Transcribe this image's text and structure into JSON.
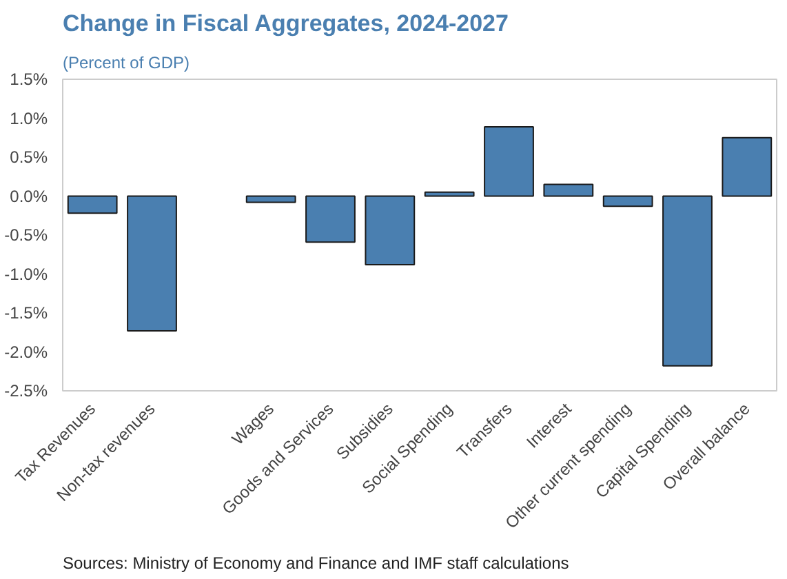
{
  "chart_data": {
    "type": "bar",
    "title": "Change in Fiscal Aggregates, 2024-2027",
    "subtitle": "(Percent of GDP)",
    "categories": [
      "Tax Revenues",
      "Non-tax revenues",
      null,
      "Wages",
      "Goods and Services",
      "Subsidies",
      "Social Spending",
      "Transfers",
      "Interest",
      "Other current spending",
      "Capital Spending",
      "Overall balance"
    ],
    "values": [
      -0.22,
      -1.73,
      null,
      -0.08,
      -0.59,
      -0.88,
      0.05,
      0.89,
      0.15,
      -0.13,
      -2.18,
      0.75
    ],
    "color": "#4a7fb0",
    "ylim": [
      -2.5,
      1.5
    ],
    "yticks": [
      {
        "value": -2.5,
        "label": "-2.5%"
      },
      {
        "value": -2.0,
        "label": "-2.0%"
      },
      {
        "value": -1.5,
        "label": "-1.5%"
      },
      {
        "value": -1.0,
        "label": "-1.0%"
      },
      {
        "value": -0.5,
        "label": "-0.5%"
      },
      {
        "value": 0,
        "label": "0.0%"
      },
      {
        "value": 0.5,
        "label": "0.5%"
      },
      {
        "value": 1.0,
        "label": "1.0%"
      },
      {
        "value": 1.5,
        "label": "1.5%"
      }
    ],
    "grid": false,
    "annotations": [
      "Sources: Ministry of Economy and Finance and IMF staff calculations"
    ]
  }
}
